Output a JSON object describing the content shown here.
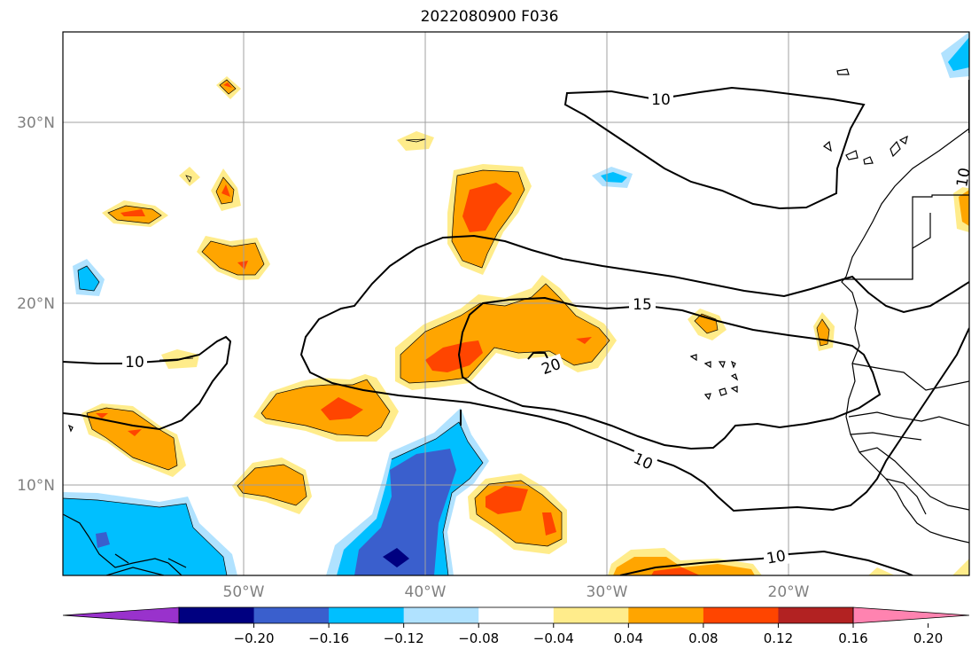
{
  "title": "2022080900 F036",
  "map": {
    "lon_range": [
      -60,
      -10
    ],
    "lat_range": [
      5,
      35
    ],
    "lat_labels": [
      "10°N",
      "20°N",
      "30°N"
    ],
    "lon_labels": [
      "50°W",
      "40°W",
      "30°W",
      "20°W"
    ],
    "contour_labels": [
      "10",
      "10",
      "15",
      "20",
      "10",
      "10",
      "10"
    ]
  },
  "colorbar": {
    "colors": [
      "#9932cc",
      "#000080",
      "#3a5fcd",
      "#00bfff",
      "#b0e2ff",
      "#ffffff",
      "#ffec8b",
      "#ffa500",
      "#ff4500",
      "#b22222",
      "#ff83b0"
    ],
    "tick_labels": [
      "−0.20",
      "−0.16",
      "−0.12",
      "−0.08",
      "−0.04",
      "0.04",
      "0.08",
      "0.12",
      "0.16",
      "0.20"
    ]
  }
}
